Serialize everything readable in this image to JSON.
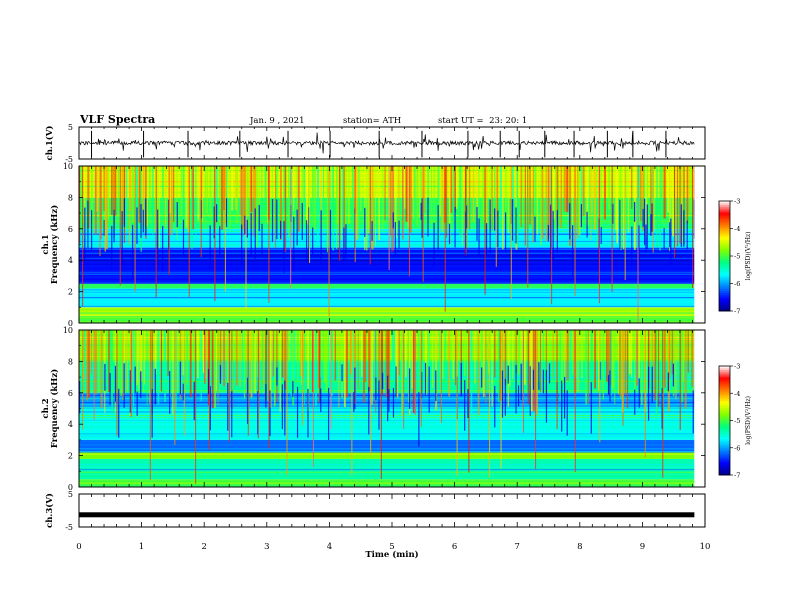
{
  "header": {
    "title": "VLF Spectra",
    "date": "Jan. 9 , 2021",
    "station": "station= ATH",
    "start": "start UT =  23: 20: 1"
  },
  "chart_data": [
    {
      "type": "line",
      "panel": "ch1-waveform",
      "ylabel": "ch.1(V)",
      "ylim": [
        -5,
        5
      ],
      "yticks": [
        "5",
        "-5"
      ],
      "xlim": [
        0,
        9.83
      ],
      "approx_baseline_V": 0,
      "noise": "impulsive spikes of roughly ±3 V around 0 V"
    },
    {
      "type": "heatmap",
      "panel": "ch1-spectrogram",
      "ylabel": "ch.1\nFrequency (kHz)",
      "ylim": [
        0,
        10
      ],
      "yticks": [
        "0",
        "2",
        "4",
        "6",
        "8",
        "10"
      ],
      "xlim": [
        0,
        9.83
      ],
      "colorbar": {
        "label": "log(PSD)(V²/Hz)",
        "range": [
          -7,
          -3
        ],
        "ticks": [
          "-3",
          "-4",
          "-5",
          "-6",
          "-7"
        ]
      },
      "bands_kHz_logPSD": [
        {
          "from": 0.0,
          "to": 0.5,
          "value": -5.0
        },
        {
          "from": 0.5,
          "to": 1.0,
          "value": -4.6
        },
        {
          "from": 1.0,
          "to": 2.2,
          "value": -5.7
        },
        {
          "from": 2.2,
          "to": 2.5,
          "value": -5.1
        },
        {
          "from": 2.5,
          "to": 4.8,
          "value": -6.5
        },
        {
          "from": 4.8,
          "to": 6.0,
          "value": -5.7
        },
        {
          "from": 6.0,
          "to": 8.0,
          "value": -5.1
        },
        {
          "from": 8.0,
          "to": 10.0,
          "value": -4.5
        }
      ]
    },
    {
      "type": "heatmap",
      "panel": "ch2-spectrogram",
      "ylabel": "ch.2\nFrequency (kHz)",
      "ylim": [
        0,
        10
      ],
      "yticks": [
        "0",
        "2",
        "4",
        "6",
        "8",
        "10"
      ],
      "xlim": [
        0,
        9.83
      ],
      "colorbar": {
        "label": "log(PSD)(V²/Hz)",
        "range": [
          -7,
          -3
        ],
        "ticks": [
          "-3",
          "-4",
          "-5",
          "-6",
          "-7"
        ]
      },
      "bands_kHz_logPSD": [
        {
          "from": 0.0,
          "to": 0.5,
          "value": -5.0
        },
        {
          "from": 0.5,
          "to": 1.8,
          "value": -5.4
        },
        {
          "from": 1.8,
          "to": 2.2,
          "value": -4.8
        },
        {
          "from": 2.2,
          "to": 3.0,
          "value": -6.2
        },
        {
          "from": 3.0,
          "to": 5.0,
          "value": -5.6
        },
        {
          "from": 5.0,
          "to": 6.0,
          "value": -6.0
        },
        {
          "from": 6.0,
          "to": 8.0,
          "value": -5.3
        },
        {
          "from": 8.0,
          "to": 10.0,
          "value": -4.8
        }
      ]
    },
    {
      "type": "line",
      "panel": "ch3-waveform",
      "ylabel": "ch.3(V)",
      "ylim": [
        -5,
        5
      ],
      "yticks": [
        "5",
        "-5"
      ],
      "xlim": [
        0,
        9.83
      ],
      "approx_baseline_V": -1.3
    }
  ],
  "xaxis": {
    "label": "Time (min)",
    "range": [
      0,
      10
    ],
    "ticks": [
      "0",
      "1",
      "2",
      "3",
      "4",
      "5",
      "6",
      "7",
      "8",
      "9",
      "10"
    ]
  },
  "colors": {
    "waveform": "#000000",
    "colormap": [
      "#000080",
      "#0000ff",
      "#0080ff",
      "#00ffff",
      "#00ff80",
      "#80ff00",
      "#ffff00",
      "#ff8000",
      "#ff0000",
      "#ffffff"
    ]
  }
}
